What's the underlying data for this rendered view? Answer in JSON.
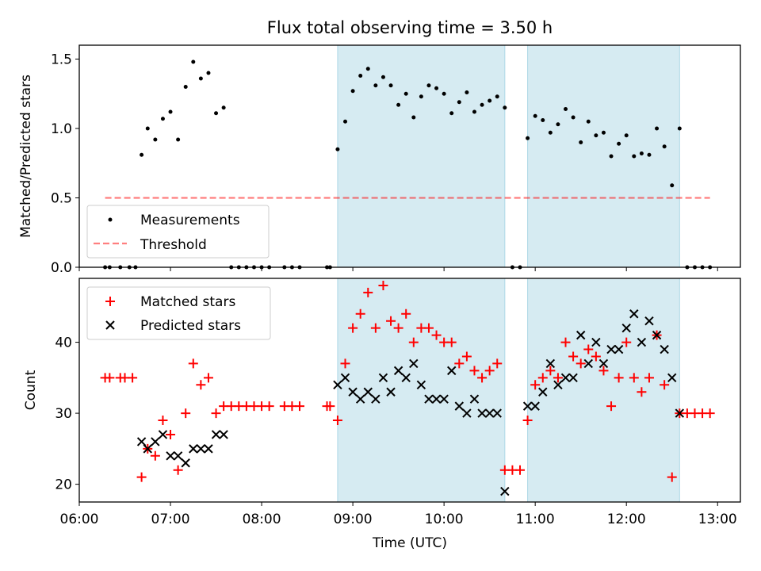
{
  "figure": {
    "title": "Flux total observing time = 3.50 h",
    "xlabel": "Time (UTC)",
    "x_ticks": [
      "06:00",
      "07:00",
      "08:00",
      "09:00",
      "10:00",
      "11:00",
      "12:00",
      "13:00"
    ]
  },
  "colors": {
    "shade": "#add8e6",
    "measurements": "#000000",
    "threshold": "#ff0000",
    "matched": "#ff0000",
    "predicted": "#000000"
  },
  "chart_data": [
    {
      "type": "scatter",
      "ylabel": "Matched/Predicted stars",
      "xlim": [
        "06:00",
        "13:15"
      ],
      "ylim": [
        0,
        1.6
      ],
      "y_ticks": [
        "0.0",
        "0.5",
        "1.0",
        "1.5"
      ],
      "legend_placement": "lower-left",
      "shaded_intervals": [
        [
          "08:50",
          "10:40"
        ],
        [
          "10:55",
          "12:35"
        ]
      ],
      "threshold": {
        "name": "Threshold",
        "value": 0.5,
        "x_range": [
          "06:17",
          "12:55"
        ]
      },
      "series": [
        {
          "name": "Measurements",
          "marker": "dot",
          "points": [
            [
              "06:17",
              0.0
            ],
            [
              "06:20",
              0.0
            ],
            [
              "06:27",
              0.0
            ],
            [
              "06:33",
              0.0
            ],
            [
              "06:37",
              0.0
            ],
            [
              "06:41",
              0.81
            ],
            [
              "06:45",
              1.0
            ],
            [
              "06:50",
              0.92
            ],
            [
              "06:55",
              1.07
            ],
            [
              "07:00",
              1.12
            ],
            [
              "07:05",
              0.92
            ],
            [
              "07:10",
              1.3
            ],
            [
              "07:15",
              1.48
            ],
            [
              "07:20",
              1.36
            ],
            [
              "07:25",
              1.4
            ],
            [
              "07:30",
              1.11
            ],
            [
              "07:35",
              1.15
            ],
            [
              "07:40",
              0.0
            ],
            [
              "07:45",
              0.0
            ],
            [
              "07:50",
              0.0
            ],
            [
              "07:55",
              0.0
            ],
            [
              "08:00",
              0.0
            ],
            [
              "08:05",
              0.0
            ],
            [
              "08:15",
              0.0
            ],
            [
              "08:20",
              0.0
            ],
            [
              "08:25",
              0.0
            ],
            [
              "08:43",
              0.0
            ],
            [
              "08:45",
              0.0
            ],
            [
              "08:50",
              0.85
            ],
            [
              "08:55",
              1.05
            ],
            [
              "09:00",
              1.27
            ],
            [
              "09:05",
              1.38
            ],
            [
              "09:10",
              1.43
            ],
            [
              "09:15",
              1.31
            ],
            [
              "09:20",
              1.37
            ],
            [
              "09:25",
              1.31
            ],
            [
              "09:30",
              1.17
            ],
            [
              "09:35",
              1.25
            ],
            [
              "09:40",
              1.08
            ],
            [
              "09:45",
              1.23
            ],
            [
              "09:50",
              1.31
            ],
            [
              "09:55",
              1.29
            ],
            [
              "10:00",
              1.25
            ],
            [
              "10:05",
              1.11
            ],
            [
              "10:10",
              1.19
            ],
            [
              "10:15",
              1.26
            ],
            [
              "10:20",
              1.12
            ],
            [
              "10:25",
              1.17
            ],
            [
              "10:30",
              1.2
            ],
            [
              "10:35",
              1.23
            ],
            [
              "10:40",
              1.15
            ],
            [
              "10:45",
              0.0
            ],
            [
              "10:50",
              0.0
            ],
            [
              "10:55",
              0.93
            ],
            [
              "11:00",
              1.09
            ],
            [
              "11:05",
              1.06
            ],
            [
              "11:10",
              0.97
            ],
            [
              "11:15",
              1.03
            ],
            [
              "11:20",
              1.14
            ],
            [
              "11:25",
              1.08
            ],
            [
              "11:30",
              0.9
            ],
            [
              "11:35",
              1.05
            ],
            [
              "11:40",
              0.95
            ],
            [
              "11:45",
              0.97
            ],
            [
              "11:50",
              0.8
            ],
            [
              "11:55",
              0.89
            ],
            [
              "12:00",
              0.95
            ],
            [
              "12:05",
              0.8
            ],
            [
              "12:10",
              0.82
            ],
            [
              "12:15",
              0.81
            ],
            [
              "12:20",
              1.0
            ],
            [
              "12:25",
              0.87
            ],
            [
              "12:30",
              0.59
            ],
            [
              "12:35",
              1.0
            ],
            [
              "12:40",
              0.0
            ],
            [
              "12:45",
              0.0
            ],
            [
              "12:50",
              0.0
            ],
            [
              "12:55",
              0.0
            ]
          ]
        }
      ]
    },
    {
      "type": "scatter",
      "xlabel": "Time (UTC)",
      "ylabel": "Count",
      "xlim": [
        "06:00",
        "13:15"
      ],
      "ylim": [
        17.5,
        49
      ],
      "y_ticks": [
        "20",
        "30",
        "40"
      ],
      "legend_placement": "upper-left",
      "shaded_intervals": [
        [
          "08:50",
          "10:40"
        ],
        [
          "10:55",
          "12:35"
        ]
      ],
      "series": [
        {
          "name": "Matched stars",
          "marker": "plus",
          "points": [
            [
              "06:17",
              35
            ],
            [
              "06:20",
              35
            ],
            [
              "06:27",
              35
            ],
            [
              "06:30",
              35
            ],
            [
              "06:35",
              35
            ],
            [
              "06:41",
              21
            ],
            [
              "06:45",
              25
            ],
            [
              "06:50",
              24
            ],
            [
              "06:55",
              29
            ],
            [
              "07:00",
              27
            ],
            [
              "07:05",
              22
            ],
            [
              "07:10",
              30
            ],
            [
              "07:15",
              37
            ],
            [
              "07:20",
              34
            ],
            [
              "07:25",
              35
            ],
            [
              "07:30",
              30
            ],
            [
              "07:35",
              31
            ],
            [
              "07:40",
              31
            ],
            [
              "07:45",
              31
            ],
            [
              "07:50",
              31
            ],
            [
              "07:55",
              31
            ],
            [
              "08:00",
              31
            ],
            [
              "08:05",
              31
            ],
            [
              "08:15",
              31
            ],
            [
              "08:20",
              31
            ],
            [
              "08:25",
              31
            ],
            [
              "08:43",
              31
            ],
            [
              "08:45",
              31
            ],
            [
              "08:50",
              29
            ],
            [
              "08:55",
              37
            ],
            [
              "09:00",
              42
            ],
            [
              "09:05",
              44
            ],
            [
              "09:10",
              47
            ],
            [
              "09:15",
              42
            ],
            [
              "09:20",
              48
            ],
            [
              "09:25",
              43
            ],
            [
              "09:30",
              42
            ],
            [
              "09:35",
              44
            ],
            [
              "09:40",
              40
            ],
            [
              "09:45",
              42
            ],
            [
              "09:50",
              42
            ],
            [
              "09:55",
              41
            ],
            [
              "10:00",
              40
            ],
            [
              "10:05",
              40
            ],
            [
              "10:10",
              37
            ],
            [
              "10:15",
              38
            ],
            [
              "10:20",
              36
            ],
            [
              "10:25",
              35
            ],
            [
              "10:30",
              36
            ],
            [
              "10:35",
              37
            ],
            [
              "10:40",
              22
            ],
            [
              "10:45",
              22
            ],
            [
              "10:50",
              22
            ],
            [
              "10:55",
              29
            ],
            [
              "11:00",
              34
            ],
            [
              "11:05",
              35
            ],
            [
              "11:10",
              36
            ],
            [
              "11:15",
              35
            ],
            [
              "11:20",
              40
            ],
            [
              "11:25",
              38
            ],
            [
              "11:30",
              37
            ],
            [
              "11:35",
              39
            ],
            [
              "11:40",
              38
            ],
            [
              "11:45",
              36
            ],
            [
              "11:50",
              31
            ],
            [
              "11:55",
              35
            ],
            [
              "12:00",
              40
            ],
            [
              "12:05",
              35
            ],
            [
              "12:10",
              33
            ],
            [
              "12:15",
              35
            ],
            [
              "12:20",
              41
            ],
            [
              "12:25",
              34
            ],
            [
              "12:30",
              21
            ],
            [
              "12:35",
              30
            ],
            [
              "12:40",
              30
            ],
            [
              "12:45",
              30
            ],
            [
              "12:50",
              30
            ],
            [
              "12:55",
              30
            ]
          ]
        },
        {
          "name": "Predicted stars",
          "marker": "x",
          "points": [
            [
              "06:41",
              26
            ],
            [
              "06:45",
              25
            ],
            [
              "06:50",
              26
            ],
            [
              "06:55",
              27
            ],
            [
              "07:00",
              24
            ],
            [
              "07:05",
              24
            ],
            [
              "07:10",
              23
            ],
            [
              "07:15",
              25
            ],
            [
              "07:20",
              25
            ],
            [
              "07:25",
              25
            ],
            [
              "07:30",
              27
            ],
            [
              "07:35",
              27
            ],
            [
              "08:50",
              34
            ],
            [
              "08:55",
              35
            ],
            [
              "09:00",
              33
            ],
            [
              "09:05",
              32
            ],
            [
              "09:10",
              33
            ],
            [
              "09:15",
              32
            ],
            [
              "09:20",
              35
            ],
            [
              "09:25",
              33
            ],
            [
              "09:30",
              36
            ],
            [
              "09:35",
              35
            ],
            [
              "09:40",
              37
            ],
            [
              "09:45",
              34
            ],
            [
              "09:50",
              32
            ],
            [
              "09:55",
              32
            ],
            [
              "10:00",
              32
            ],
            [
              "10:05",
              36
            ],
            [
              "10:10",
              31
            ],
            [
              "10:15",
              30
            ],
            [
              "10:20",
              32
            ],
            [
              "10:25",
              30
            ],
            [
              "10:30",
              30
            ],
            [
              "10:35",
              30
            ],
            [
              "10:40",
              19
            ],
            [
              "10:55",
              31
            ],
            [
              "11:00",
              31
            ],
            [
              "11:05",
              33
            ],
            [
              "11:10",
              37
            ],
            [
              "11:15",
              34
            ],
            [
              "11:20",
              35
            ],
            [
              "11:25",
              35
            ],
            [
              "11:30",
              41
            ],
            [
              "11:35",
              37
            ],
            [
              "11:40",
              40
            ],
            [
              "11:45",
              37
            ],
            [
              "11:50",
              39
            ],
            [
              "11:55",
              39
            ],
            [
              "12:00",
              42
            ],
            [
              "12:05",
              44
            ],
            [
              "12:10",
              40
            ],
            [
              "12:15",
              43
            ],
            [
              "12:20",
              41
            ],
            [
              "12:25",
              39
            ],
            [
              "12:30",
              35
            ],
            [
              "12:35",
              30
            ]
          ]
        }
      ]
    }
  ]
}
